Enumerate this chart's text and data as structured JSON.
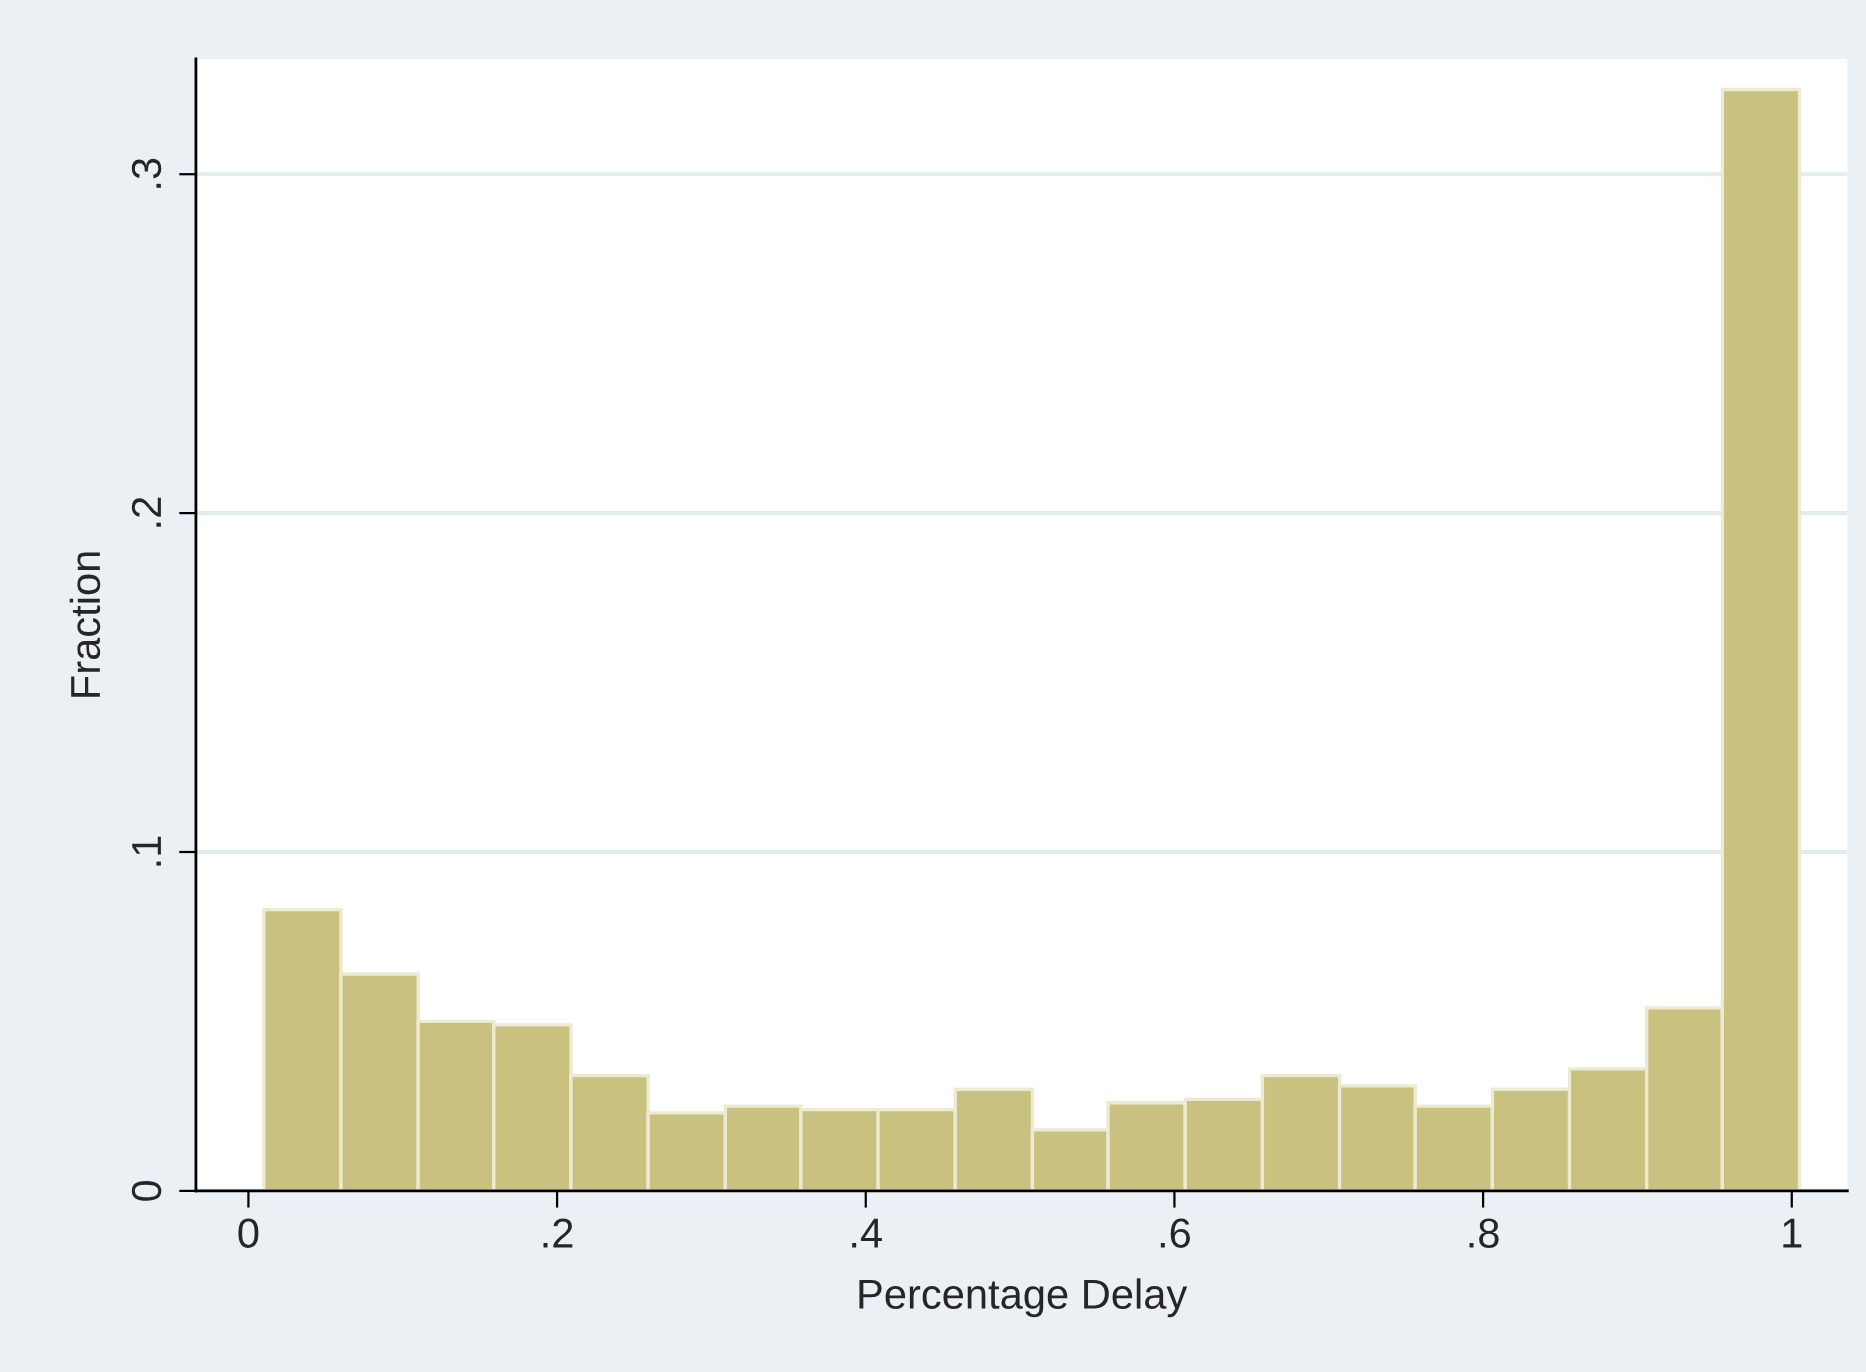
{
  "chart_data": {
    "type": "histogram",
    "xlabel": "Percentage Delay",
    "ylabel": "Fraction",
    "bins": [
      0.01,
      0.06,
      0.11,
      0.159,
      0.209,
      0.259,
      0.309,
      0.358,
      0.408,
      0.458,
      0.508,
      0.557,
      0.607,
      0.657,
      0.707,
      0.756,
      0.806,
      0.856,
      0.906,
      0.955,
      1.005
    ],
    "values": [
      0.083,
      0.064,
      0.05,
      0.049,
      0.034,
      0.023,
      0.025,
      0.024,
      0.024,
      0.03,
      0.018,
      0.026,
      0.027,
      0.034,
      0.031,
      0.025,
      0.03,
      0.036,
      0.054,
      0.325
    ],
    "color": "#c9c17f",
    "xlim": [
      -0.034,
      1.036
    ],
    "ylim": [
      0,
      0.334
    ],
    "xticks": [
      {
        "value": 0,
        "label": "0"
      },
      {
        "value": 0.2,
        "label": ".2"
      },
      {
        "value": 0.4,
        "label": ".4"
      },
      {
        "value": 0.6,
        "label": ".6"
      },
      {
        "value": 0.8,
        "label": ".8"
      },
      {
        "value": 1,
        "label": "1"
      }
    ],
    "yticks": [
      {
        "value": 0,
        "label": "0"
      },
      {
        "value": 0.1,
        "label": ".1"
      },
      {
        "value": 0.2,
        "label": ".2"
      },
      {
        "value": 0.3,
        "label": ".3"
      }
    ],
    "grid": "y"
  }
}
